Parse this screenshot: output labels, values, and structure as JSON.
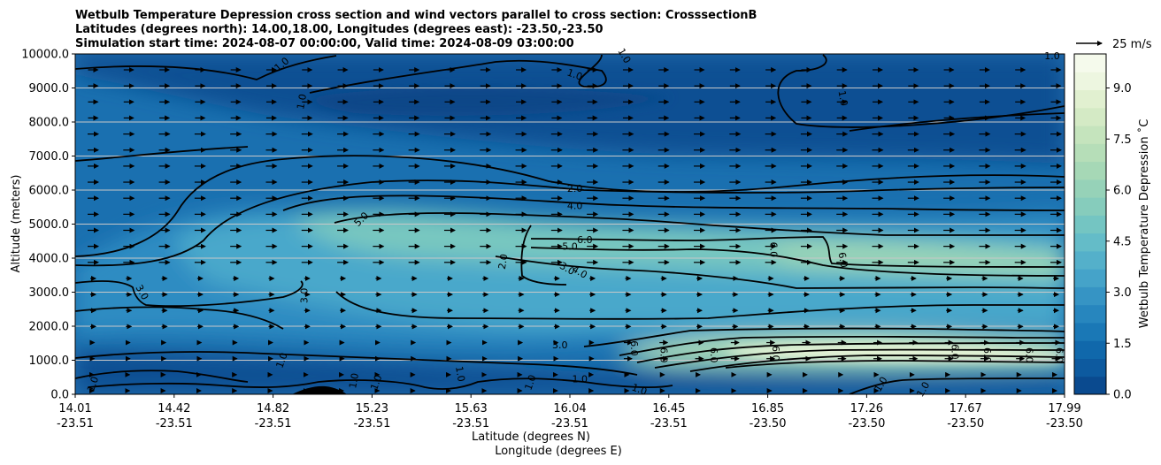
{
  "chart_data": {
    "type": "heatmap",
    "title_lines": [
      "Wetbulb Temperature Depression cross section and wind vectors parallel to cross section: CrosssectionB",
      "Latitudes (degrees north): 14.00,18.00, Longitudes (degrees east): -23.50,-23.50",
      "Simulation start time: 2024-08-07 00:00:00, Valid time: 2024-08-09 03:00:00"
    ],
    "ylabel": "Altitude (meters)",
    "xlabel_lat": "Latitude (degrees N)",
    "xlabel_lon": "Longitude (degrees E)",
    "ylim": [
      0,
      10000
    ],
    "y_ticks": [
      "0.0",
      "1000.0",
      "2000.0",
      "3000.0",
      "4000.0",
      "5000.0",
      "6000.0",
      "7000.0",
      "8000.0",
      "9000.0",
      "10000.0"
    ],
    "x_ticks": [
      {
        "lat": "14.01",
        "lon": "-23.51"
      },
      {
        "lat": "14.42",
        "lon": "-23.51"
      },
      {
        "lat": "14.82",
        "lon": "-23.51"
      },
      {
        "lat": "15.23",
        "lon": "-23.51"
      },
      {
        "lat": "15.63",
        "lon": "-23.51"
      },
      {
        "lat": "16.04",
        "lon": "-23.51"
      },
      {
        "lat": "16.45",
        "lon": "-23.51"
      },
      {
        "lat": "16.85",
        "lon": "-23.50"
      },
      {
        "lat": "17.26",
        "lon": "-23.50"
      },
      {
        "lat": "17.67",
        "lon": "-23.50"
      },
      {
        "lat": "17.99",
        "lon": "-23.50"
      }
    ],
    "grid": "horizontal",
    "colorbar": {
      "label": "Wetbulb Temperature Depression ˚C",
      "range": [
        0,
        10
      ],
      "ticks": [
        "0.0",
        "1.5",
        "3.0",
        "4.5",
        "6.0",
        "7.5",
        "9.0"
      ],
      "colors": [
        "#0a4a8f",
        "#0d5a9f",
        "#1068ab",
        "#1a78b6",
        "#2786be",
        "#3694c4",
        "#45a3c9",
        "#54b0ca",
        "#64bcc8",
        "#74c5c2",
        "#86ccbc",
        "#96d2b8",
        "#a6d8b6",
        "#b6deb8",
        "#c5e4bd",
        "#d4eac5",
        "#e1f0d0",
        "#edf6e0",
        "#f5faec"
      ]
    },
    "wind_key": {
      "label": "25 m/s"
    },
    "contour_labels": [
      {
        "text": "1.0",
        "lat": 14.84,
        "alt": 9700,
        "rot": -40
      },
      {
        "text": "1.0",
        "lat": 14.92,
        "alt": 8600,
        "rot": -80
      },
      {
        "text": "1.0",
        "lat": 16.02,
        "alt": 9400,
        "rot": 20
      },
      {
        "text": "1.0",
        "lat": 17.1,
        "alt": 8700,
        "rot": 80
      },
      {
        "text": "1.0",
        "lat": 17.94,
        "alt": 9950,
        "rot": 0
      },
      {
        "text": "1.0",
        "lat": 16.22,
        "alt": 9950,
        "rot": 60
      },
      {
        "text": "2.0",
        "lat": 16.02,
        "alt": 6050,
        "rot": 0
      },
      {
        "text": "4.0",
        "lat": 16.02,
        "alt": 5550,
        "rot": 0
      },
      {
        "text": "5.0",
        "lat": 15.16,
        "alt": 5150,
        "rot": -45
      },
      {
        "text": "6.0",
        "lat": 16.06,
        "alt": 4550,
        "rot": 0
      },
      {
        "text": "5.0",
        "lat": 16.0,
        "alt": 4350,
        "rot": 0
      },
      {
        "text": "2.0",
        "lat": 15.73,
        "alt": 3900,
        "rot": -80
      },
      {
        "text": "3.0",
        "lat": 15.99,
        "alt": 3700,
        "rot": 30
      },
      {
        "text": "4.0",
        "lat": 16.04,
        "alt": 3600,
        "rot": 30
      },
      {
        "text": "6.0",
        "lat": 16.82,
        "alt": 4250,
        "rot": 90
      },
      {
        "text": "6.0",
        "lat": 17.1,
        "alt": 3950,
        "rot": 80
      },
      {
        "text": "3.0",
        "lat": 14.28,
        "alt": 3000,
        "rot": 60
      },
      {
        "text": "3.0",
        "lat": 14.93,
        "alt": 2900,
        "rot": -90
      },
      {
        "text": "3.0",
        "lat": 15.96,
        "alt": 1450,
        "rot": 0
      },
      {
        "text": "6.0",
        "lat": 16.26,
        "alt": 1350,
        "rot": 90
      },
      {
        "text": "6.0",
        "lat": 16.38,
        "alt": 1150,
        "rot": 90
      },
      {
        "text": "6.0",
        "lat": 16.58,
        "alt": 1150,
        "rot": 90
      },
      {
        "text": "6.0",
        "lat": 16.83,
        "alt": 1200,
        "rot": 90
      },
      {
        "text": "6.0",
        "lat": 17.55,
        "alt": 1250,
        "rot": 90
      },
      {
        "text": "6.0",
        "lat": 17.68,
        "alt": 1150,
        "rot": 90
      },
      {
        "text": "6.0",
        "lat": 17.85,
        "alt": 1150,
        "rot": 90
      },
      {
        "text": "6.0",
        "lat": 17.97,
        "alt": 1150,
        "rot": 90
      },
      {
        "text": "1.0",
        "lat": 14.08,
        "alt": 300,
        "rot": -70
      },
      {
        "text": "1.0",
        "lat": 14.84,
        "alt": 1000,
        "rot": -70
      },
      {
        "text": "1.0",
        "lat": 15.22,
        "alt": 350,
        "rot": -70
      },
      {
        "text": "1.0",
        "lat": 15.56,
        "alt": 600,
        "rot": 80
      },
      {
        "text": "1.0",
        "lat": 15.84,
        "alt": 350,
        "rot": -70
      },
      {
        "text": "1.0",
        "lat": 16.04,
        "alt": 450,
        "rot": 0
      },
      {
        "text": "1.0",
        "lat": 16.28,
        "alt": 150,
        "rot": 20
      },
      {
        "text": "1.0",
        "lat": 17.25,
        "alt": 300,
        "rot": -60
      },
      {
        "text": "1.0",
        "lat": 17.42,
        "alt": 150,
        "rot": -60
      },
      {
        "text": "1.0",
        "lat": 15.13,
        "alt": 400,
        "rot": -80
      }
    ]
  }
}
